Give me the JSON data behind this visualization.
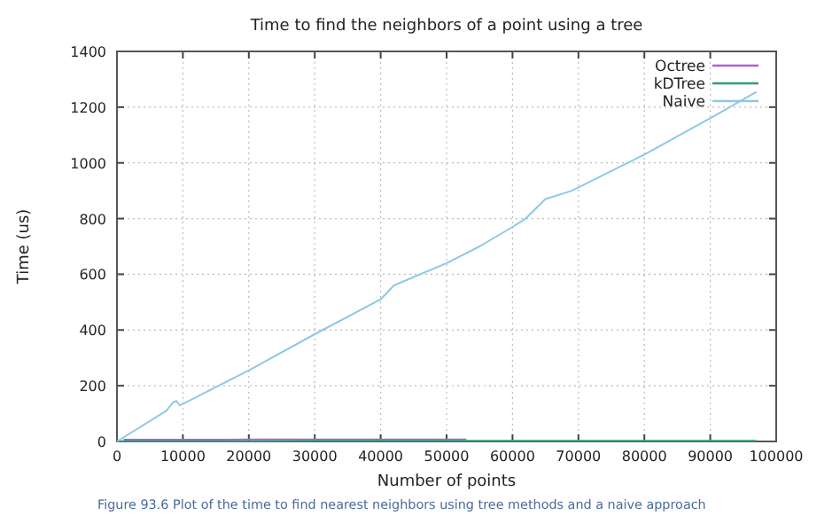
{
  "chart_data": {
    "type": "line",
    "title": "Time to find the neighbors of a point using a tree",
    "xlabel": "Number of points",
    "ylabel": "Time (us)",
    "xlim": [
      0,
      100000
    ],
    "ylim": [
      0,
      1400
    ],
    "xticks": [
      0,
      10000,
      20000,
      30000,
      40000,
      50000,
      60000,
      70000,
      80000,
      90000,
      100000
    ],
    "yticks": [
      0,
      200,
      400,
      600,
      800,
      1000,
      1200,
      1400
    ],
    "grid": true,
    "legend": "top right",
    "annotations": [
      "Figure 93.6 Plot of the time to find nearest neighbors using tree methods and a naive approach"
    ],
    "series": [
      {
        "name": "Octree",
        "color": "#b05fd6",
        "x": [
          1000,
          10000,
          20000,
          30000,
          40000,
          53000
        ],
        "values": [
          6,
          6,
          7,
          7,
          7,
          7
        ]
      },
      {
        "name": "kDTree",
        "color": "#2e9e7a",
        "x": [
          0,
          10000,
          20000,
          30000,
          40000,
          50000,
          60000,
          70000,
          80000,
          90000,
          97000
        ],
        "values": [
          1,
          1,
          1,
          2,
          2,
          2,
          2,
          2,
          2,
          2,
          2
        ]
      },
      {
        "name": "Naive",
        "color": "#8ec8e8",
        "x": [
          0,
          7500,
          8500,
          9000,
          9500,
          10000,
          20000,
          30000,
          40000,
          42000,
          50000,
          55000,
          60000,
          62000,
          65000,
          67000,
          69000,
          80000,
          90000,
          97000
        ],
        "values": [
          0,
          110,
          140,
          145,
          130,
          135,
          255,
          385,
          510,
          560,
          640,
          700,
          770,
          800,
          870,
          885,
          900,
          1030,
          1160,
          1255
        ]
      }
    ]
  }
}
